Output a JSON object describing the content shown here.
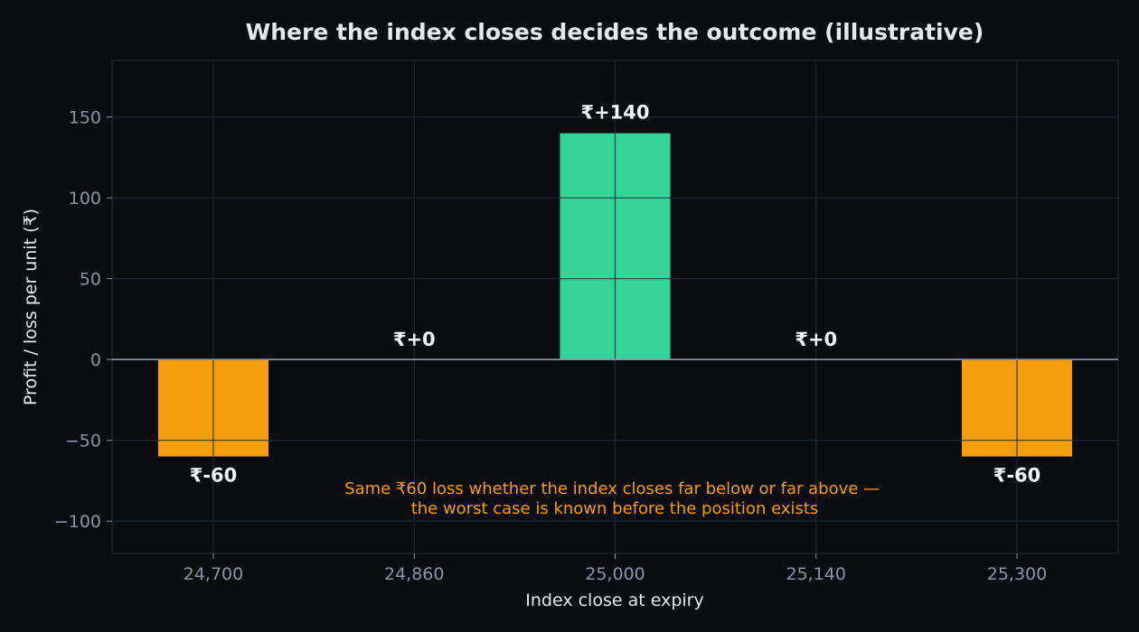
{
  "colors": {
    "background": "#0b0c10",
    "plot_frame": "#222a35",
    "grid": "#1e2630",
    "zero_line": "#8a96a8",
    "tick_text": "#8a94a4",
    "label_text": "#e6e8ee",
    "profit": "#34d399",
    "loss": "#f59e0b",
    "annotation": "#f59e0b"
  },
  "chart_data": {
    "type": "bar",
    "title": "Where the index closes decides the outcome (illustrative)",
    "xlabel": "Index close at expiry",
    "ylabel": "Profit / loss per unit (₹)",
    "categories": [
      "24,700",
      "24,860",
      "25,000",
      "25,140",
      "25,300"
    ],
    "values": [
      -60,
      0,
      140,
      0,
      -60
    ],
    "data_labels": [
      "₹-60",
      "₹+0",
      "₹+140",
      "₹+0",
      "₹-60"
    ],
    "ylim": [
      -120,
      185
    ],
    "yticks": [
      150,
      100,
      50,
      0,
      -50,
      -100
    ],
    "ytick_labels": [
      "150",
      "100",
      "50",
      "0",
      "−50",
      "−100"
    ],
    "grid": true,
    "annotation": {
      "lines": [
        "Same ₹60 loss whether the index closes far below or far above —",
        "the worst case is known before the position exists"
      ]
    }
  }
}
